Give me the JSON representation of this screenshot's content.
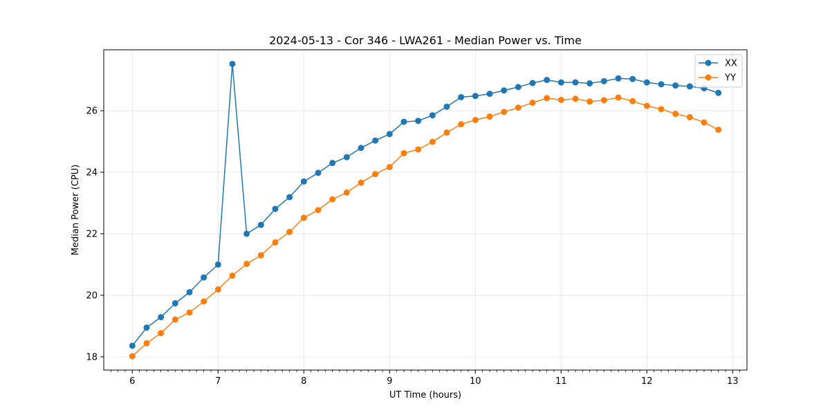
{
  "chart_data": {
    "type": "line",
    "title": "2024-05-13 - Cor 346 - LWA261 - Median Power vs. Time",
    "xlabel": "UT Time (hours)",
    "ylabel": "Median Power (CPU)",
    "xlim": [
      5.667,
      13.167
    ],
    "ylim": [
      17.57,
      27.98
    ],
    "xticks": [
      6,
      7,
      8,
      9,
      10,
      11,
      12,
      13
    ],
    "xticks_minor": [
      5.75,
      5.833,
      5.917,
      6.083,
      6.167,
      6.25,
      6.333,
      6.417,
      6.5,
      6.583,
      6.667,
      6.75,
      6.833,
      6.917,
      7.083,
      7.167,
      7.25,
      7.333,
      7.417,
      7.5,
      7.583,
      7.667,
      7.75,
      7.833,
      7.917,
      8.083,
      8.167,
      8.25,
      8.333,
      8.417,
      8.5,
      8.583,
      8.667,
      8.75,
      8.833,
      8.917,
      9.083,
      9.167,
      9.25,
      9.333,
      9.417,
      9.5,
      9.583,
      9.667,
      9.75,
      9.833,
      9.917,
      10.083,
      10.167,
      10.25,
      10.333,
      10.417,
      10.5,
      10.583,
      10.667,
      10.75,
      10.833,
      10.917,
      11.083,
      11.167,
      11.25,
      11.333,
      11.417,
      11.5,
      11.583,
      11.667,
      11.75,
      11.833,
      11.917,
      12.083,
      12.167,
      12.25,
      12.333,
      12.417,
      12.5,
      12.583,
      12.667,
      12.75,
      12.833,
      12.917,
      13.083
    ],
    "yticks": [
      18,
      20,
      22,
      24,
      26
    ],
    "grid": true,
    "legend_position": "top-right",
    "x": [
      6.0,
      6.1667,
      6.3333,
      6.5,
      6.6667,
      6.8333,
      7.0,
      7.1667,
      7.3333,
      7.5,
      7.6667,
      7.8333,
      8.0,
      8.1667,
      8.3333,
      8.5,
      8.6667,
      8.8333,
      9.0,
      9.1667,
      9.3333,
      9.5,
      9.6667,
      9.8333,
      10.0,
      10.1667,
      10.3333,
      10.5,
      10.6667,
      10.8333,
      11.0,
      11.1667,
      11.3333,
      11.5,
      11.6667,
      11.8333,
      12.0,
      12.1667,
      12.3333,
      12.5,
      12.6667,
      12.8333
    ],
    "series": [
      {
        "name": "XX",
        "color": "#1f77b4",
        "values": [
          18.36,
          18.95,
          19.29,
          19.74,
          20.1,
          20.58,
          21.0,
          27.52,
          22.0,
          22.29,
          22.81,
          23.19,
          23.7,
          23.98,
          24.3,
          24.49,
          24.79,
          25.03,
          25.24,
          25.64,
          25.67,
          25.85,
          26.13,
          26.44,
          26.48,
          26.55,
          26.66,
          26.77,
          26.9,
          27.0,
          26.92,
          26.92,
          26.89,
          26.96,
          27.05,
          27.03,
          26.92,
          26.86,
          26.82,
          26.79,
          26.73,
          26.58
        ]
      },
      {
        "name": "YY",
        "color": "#ff7f0e",
        "values": [
          18.02,
          18.44,
          18.77,
          19.21,
          19.44,
          19.8,
          20.19,
          20.64,
          21.02,
          21.3,
          21.72,
          22.06,
          22.52,
          22.77,
          23.12,
          23.34,
          23.66,
          23.94,
          24.17,
          24.62,
          24.74,
          24.99,
          25.29,
          25.56,
          25.7,
          25.81,
          25.96,
          26.1,
          26.26,
          26.41,
          26.35,
          26.39,
          26.3,
          26.34,
          26.43,
          26.31,
          26.16,
          26.05,
          25.9,
          25.79,
          25.62,
          25.38
        ]
      }
    ]
  }
}
